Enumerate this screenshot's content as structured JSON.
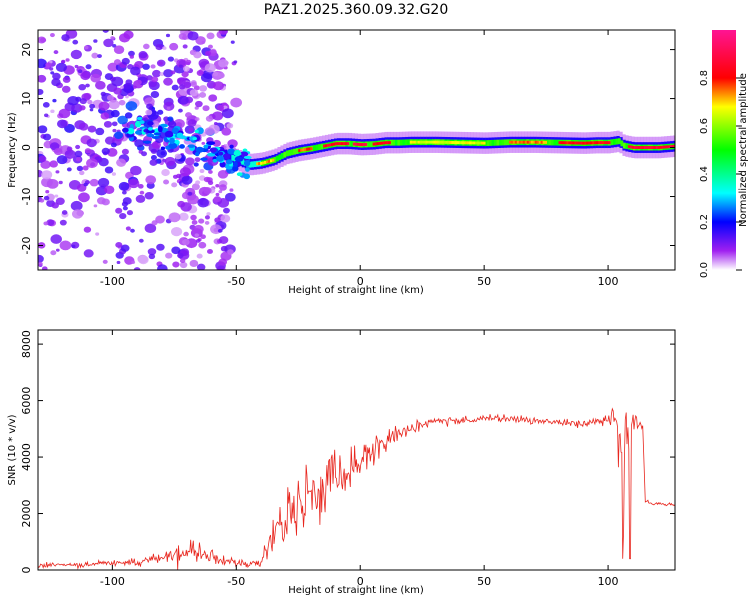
{
  "title": "PAZ1.2025.360.09.32.G20",
  "chart_data": [
    {
      "type": "heatmap",
      "name": "spectrogram",
      "xlabel": "Height of straight line (km)",
      "ylabel": "Frequency (Hz)",
      "xlim": [
        -130,
        127
      ],
      "ylim": [
        -25,
        24
      ],
      "xticks": [
        -100,
        -50,
        0,
        50,
        100
      ],
      "yticks": [
        -20,
        -10,
        0,
        10,
        20
      ],
      "ridge": {
        "x": [
          -90,
          -80,
          -70,
          -60,
          -50,
          -45,
          -40,
          -35,
          -30,
          -25,
          -20,
          -15,
          -10,
          -5,
          0,
          5,
          10,
          15,
          20,
          30,
          40,
          50,
          60,
          70,
          80,
          90,
          95,
          100,
          104,
          106,
          110,
          115,
          120,
          127
        ],
        "y": [
          3.5,
          2.5,
          1.5,
          -0.5,
          -2.5,
          -3.5,
          -3.2,
          -2.5,
          -1.2,
          -0.6,
          -0.2,
          0.3,
          0.8,
          0.8,
          0.6,
          0.7,
          1.0,
          1.0,
          1.1,
          1.1,
          1.0,
          0.9,
          1.1,
          1.1,
          1.0,
          0.9,
          1.0,
          1.0,
          1.3,
          0.4,
          0.0,
          0.0,
          0.0,
          0.3
        ]
      },
      "colorbar": {
        "label": "Normalized spectral amplitude",
        "ticks": [
          0.0,
          0.2,
          0.4,
          0.6,
          0.8
        ],
        "tick_labels": [
          "0.0",
          "0.2",
          "0.4",
          "0.6",
          "0.8"
        ],
        "range": [
          0,
          1
        ]
      }
    },
    {
      "type": "line",
      "name": "snr",
      "xlabel": "Height of straight line (km)",
      "ylabel": "SNR (10 * v/v)",
      "xlim": [
        -130,
        127
      ],
      "ylim": [
        0,
        8500
      ],
      "xticks": [
        -100,
        -50,
        0,
        50,
        100
      ],
      "yticks": [
        0,
        2000,
        4000,
        6000,
        8000
      ],
      "color": "#e8261e",
      "envelope": {
        "x": [
          -130,
          -110,
          -90,
          -80,
          -70,
          -60,
          -50,
          -45,
          -40,
          -35,
          -30,
          -25,
          -20,
          -15,
          -10,
          -5,
          0,
          5,
          10,
          15,
          20,
          25,
          30,
          40,
          50,
          60,
          70,
          80,
          90,
          95,
          100,
          103,
          105,
          107,
          109,
          112,
          114,
          115,
          120,
          127
        ],
        "mean": [
          150,
          200,
          300,
          450,
          650,
          500,
          300,
          200,
          300,
          1200,
          1800,
          2200,
          2600,
          3000,
          3300,
          3600,
          3800,
          4200,
          4600,
          4800,
          5000,
          5150,
          5250,
          5300,
          5350,
          5350,
          5300,
          5250,
          5200,
          5250,
          5300,
          5400,
          4500,
          4000,
          5200,
          5150,
          5100,
          2400,
          2350,
          2300
        ],
        "noise": [
          80,
          90,
          120,
          180,
          300,
          300,
          120,
          80,
          150,
          700,
          900,
          1000,
          900,
          900,
          800,
          700,
          600,
          450,
          350,
          300,
          220,
          180,
          150,
          120,
          110,
          110,
          110,
          110,
          130,
          180,
          250,
          600,
          2800,
          3500,
          1000,
          150,
          120,
          70,
          60,
          60
        ]
      }
    }
  ]
}
